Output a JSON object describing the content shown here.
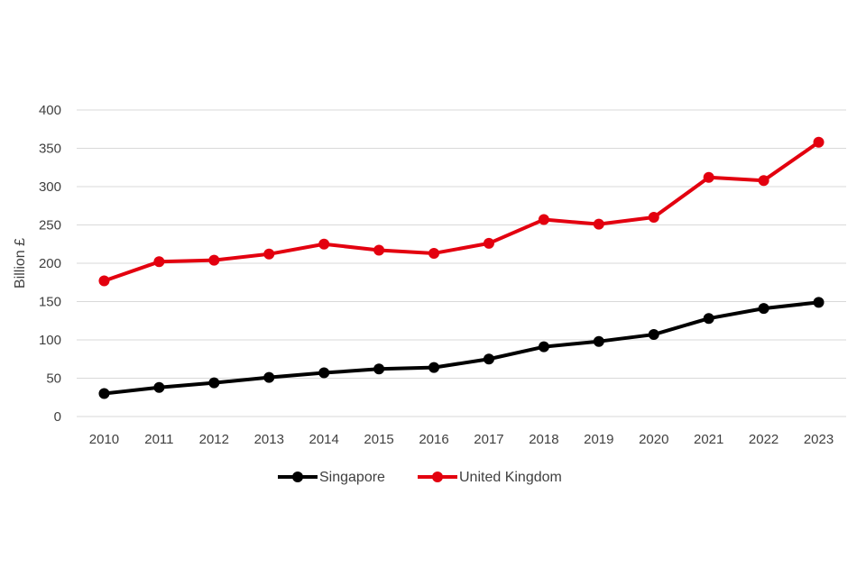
{
  "chart_data": {
    "type": "line",
    "title": "",
    "xlabel": "",
    "ylabel": "Billion £",
    "ylim": [
      0,
      400
    ],
    "yticks": [
      "0",
      "50",
      "100",
      "150",
      "200",
      "250",
      "300",
      "350",
      "400"
    ],
    "grid": true,
    "legend_position": "bottom",
    "categories": [
      "2010",
      "2011",
      "2012",
      "2013",
      "2014",
      "2015",
      "2016",
      "2017",
      "2018",
      "2019",
      "2020",
      "2021",
      "2022",
      "2023"
    ],
    "series": [
      {
        "name": "Singapore",
        "color": "#000000",
        "values": [
          30,
          38,
          44,
          51,
          57,
          62,
          64,
          75,
          91,
          98,
          107,
          128,
          141,
          149
        ]
      },
      {
        "name": "United Kingdom",
        "color": "#e3000f",
        "values": [
          177,
          202,
          204,
          212,
          225,
          217,
          213,
          226,
          257,
          251,
          260,
          312,
          308,
          358
        ]
      }
    ]
  }
}
